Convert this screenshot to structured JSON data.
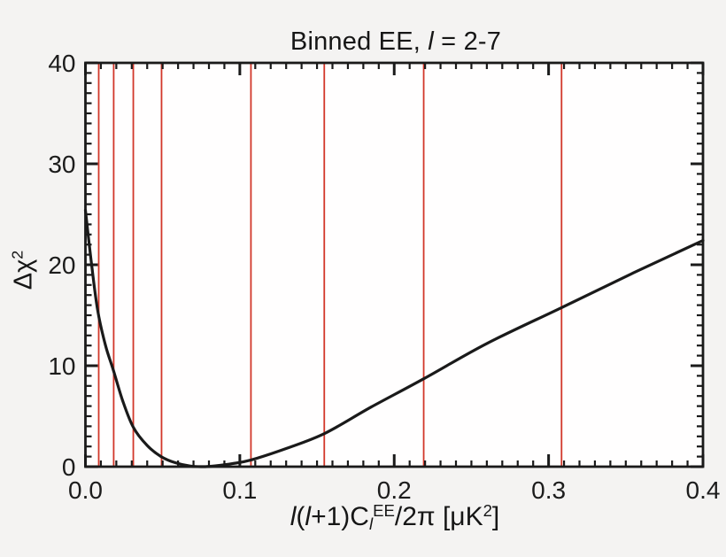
{
  "figure": {
    "background": "#f4f3f2",
    "plot_background": "#fffefe",
    "frame_color": "#1a1a1a",
    "text_color": "#1c1c1c",
    "accent_red": "#d2372a"
  },
  "chart_data": {
    "type": "line",
    "title": "Binned EE, l = 2-7",
    "title_parts": [
      {
        "t": "Binned EE, "
      },
      {
        "t": "l",
        "i": 1
      },
      {
        "t": " = 2-7"
      }
    ],
    "xlabel": "l(l+1)Cl^EE/2pi [uK^2]",
    "xlabel_parts": [
      {
        "t": "l",
        "i": 1
      },
      {
        "t": "("
      },
      {
        "t": "l",
        "i": 1
      },
      {
        "t": "+1)C"
      },
      {
        "t": "l",
        "i": 1,
        "sub": 1
      },
      {
        "t": "EE",
        "sup": 1
      },
      {
        "t": "/2π ["
      },
      {
        "t": "μK"
      },
      {
        "t": "2",
        "sup": 1
      },
      {
        "t": "]"
      }
    ],
    "ylabel": "Delta chi^2",
    "ylabel_parts": [
      {
        "t": "Δχ"
      },
      {
        "t": "2",
        "sup": 1
      }
    ],
    "xlim": [
      0.0,
      0.4
    ],
    "ylim": [
      0,
      40
    ],
    "x_tick_labels": [
      "0.0",
      "0.1",
      "0.2",
      "0.3",
      "0.4"
    ],
    "x_major_ticks": [
      0.0,
      0.1,
      0.2,
      0.3,
      0.4
    ],
    "x_minor_step": 0.01,
    "y_tick_labels": [
      "0",
      "10",
      "20",
      "30",
      "40"
    ],
    "y_major_ticks": [
      0,
      10,
      20,
      30,
      40
    ],
    "y_minor_step": 1,
    "grid": "off",
    "legend": "none",
    "series": [
      {
        "name": "delta-chi2-curve",
        "color": "#1a1a1a",
        "points": [
          [
            0.0,
            25.4
          ],
          [
            0.004,
            20.0
          ],
          [
            0.008,
            15.4
          ],
          [
            0.013,
            12.0
          ],
          [
            0.018,
            9.6
          ],
          [
            0.024,
            6.6
          ],
          [
            0.031,
            3.9
          ],
          [
            0.04,
            2.1
          ],
          [
            0.049,
            1.0
          ],
          [
            0.058,
            0.4
          ],
          [
            0.068,
            0.06
          ],
          [
            0.076,
            0.0
          ],
          [
            0.084,
            0.08
          ],
          [
            0.095,
            0.3
          ],
          [
            0.107,
            0.65
          ],
          [
            0.13,
            1.8
          ],
          [
            0.155,
            3.3
          ],
          [
            0.185,
            5.9
          ],
          [
            0.219,
            8.7
          ],
          [
            0.26,
            12.2
          ],
          [
            0.309,
            15.8
          ],
          [
            0.355,
            19.2
          ],
          [
            0.4,
            22.4
          ]
        ]
      }
    ],
    "vlines": {
      "name": "red-sample-lines",
      "color": "#d2372a",
      "x": [
        0.0086,
        0.0183,
        0.031,
        0.0493,
        0.1072,
        0.1547,
        0.2191,
        0.3084
      ]
    }
  }
}
